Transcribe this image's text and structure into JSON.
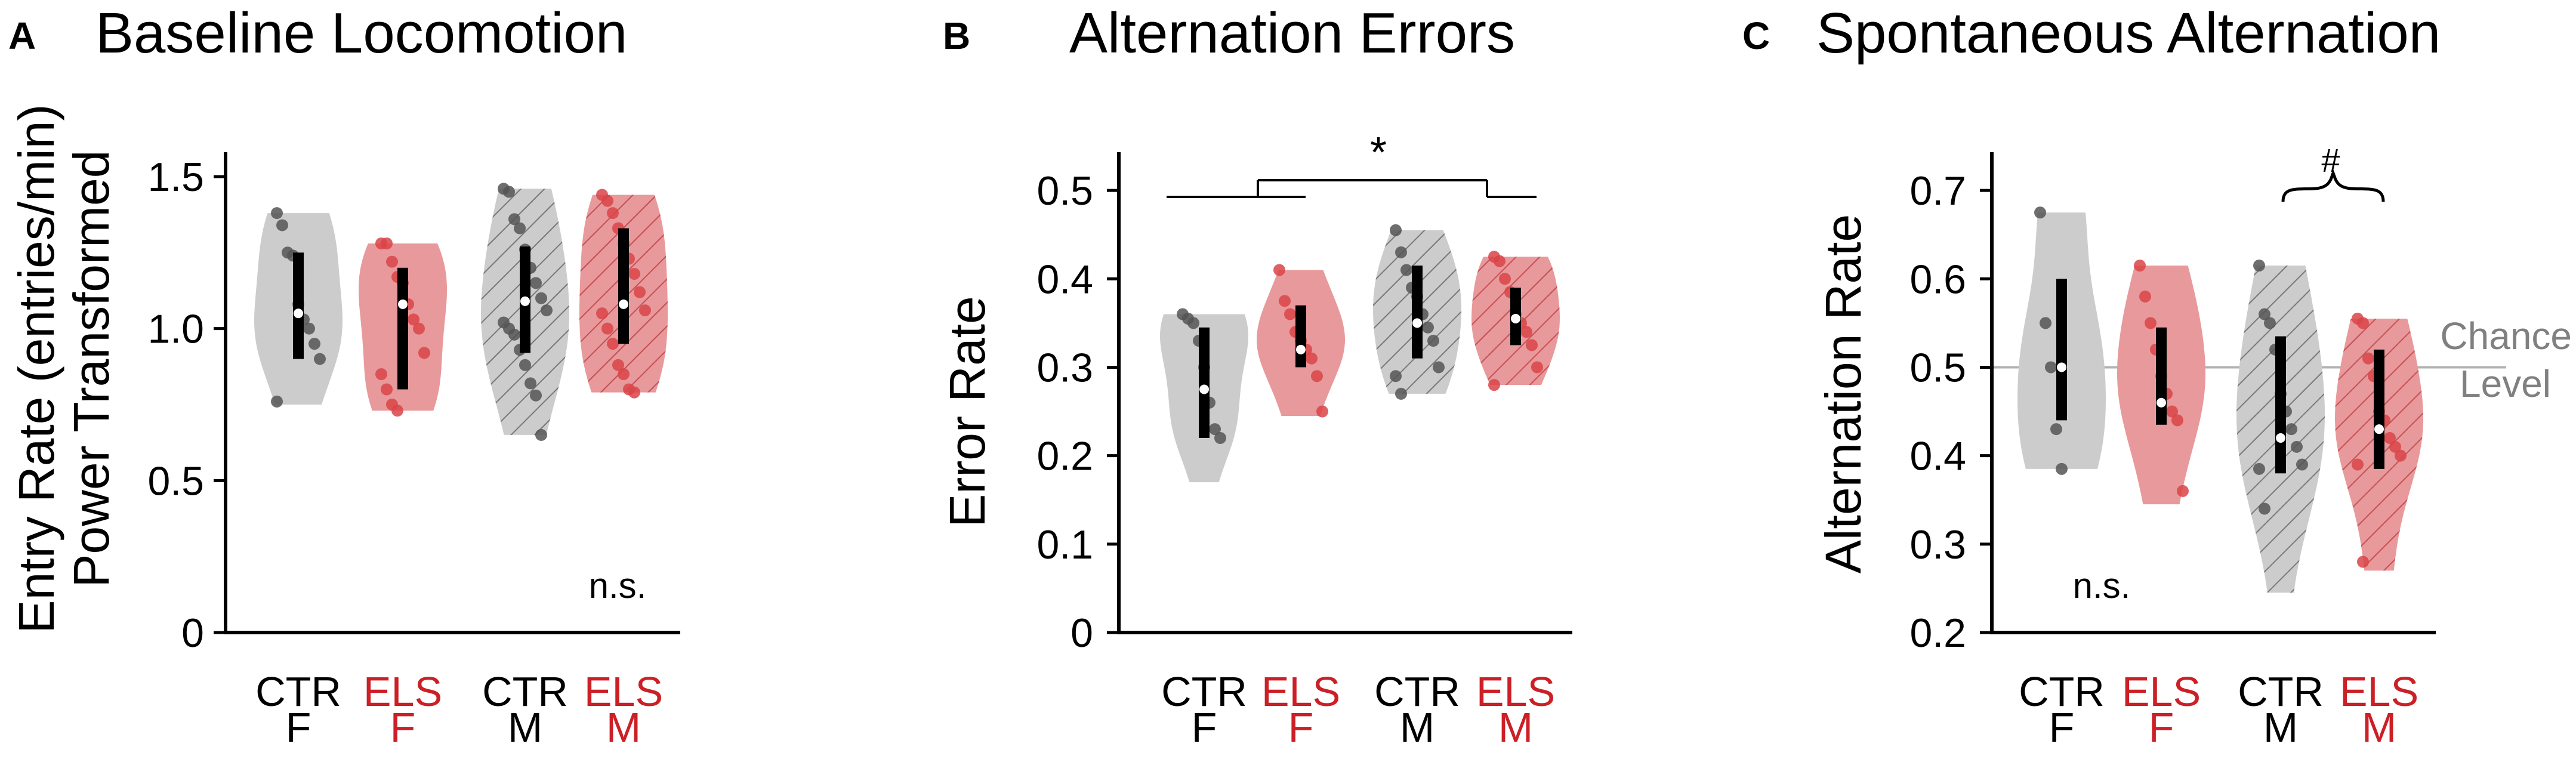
{
  "colors": {
    "ctr_fill": "#cccccc",
    "els_fill": "#e8999b",
    "ctr_point": "#555555",
    "els_point": "#d94448",
    "ctr_label": "#000000",
    "els_label": "#cc1f26",
    "chance_line": "#b3b3b3",
    "chance_text": "#808080"
  },
  "group_labels": [
    {
      "top": "CTR",
      "bottom": "F",
      "kind": "ctr"
    },
    {
      "top": "ELS",
      "bottom": "F",
      "kind": "els"
    },
    {
      "top": "CTR",
      "bottom": "M",
      "kind": "ctr"
    },
    {
      "top": "ELS",
      "bottom": "M",
      "kind": "els"
    }
  ],
  "chart_data": [
    {
      "panel": "A",
      "type": "violin",
      "title": "Baseline Locomotion",
      "ylabel": [
        "Entry Rate (entries/min)",
        "Power Transformed"
      ],
      "ylim": [
        0,
        1.6
      ],
      "yticks": [
        0,
        0.5,
        1.0,
        1.5
      ],
      "ytick_labels": [
        "0",
        "0.5",
        "1.0",
        "1.5"
      ],
      "annotation": "n.s.",
      "series": [
        {
          "group": "CTR F",
          "median": 1.05,
          "q1": 0.9,
          "q3": 1.25,
          "min": 0.75,
          "max": 1.38,
          "hatched": false,
          "points": [
            1.38,
            1.34,
            1.25,
            1.24,
            1.08,
            1.03,
            1.0,
            0.95,
            0.9,
            0.76
          ]
        },
        {
          "group": "ELS F",
          "median": 1.08,
          "q1": 0.8,
          "q3": 1.2,
          "min": 0.73,
          "max": 1.28,
          "hatched": false,
          "points": [
            1.28,
            1.28,
            1.22,
            1.17,
            1.15,
            1.08,
            1.03,
            1.0,
            0.92,
            0.85,
            0.8,
            0.75,
            0.73
          ]
        },
        {
          "group": "CTR M",
          "median": 1.09,
          "q1": 0.92,
          "q3": 1.27,
          "min": 0.65,
          "max": 1.46,
          "hatched": true,
          "points": [
            1.46,
            1.45,
            1.36,
            1.33,
            1.26,
            1.2,
            1.15,
            1.1,
            1.06,
            1.02,
            1.0,
            0.98,
            0.93,
            0.88,
            0.82,
            0.78,
            0.65
          ]
        },
        {
          "group": "ELS M",
          "median": 1.08,
          "q1": 0.95,
          "q3": 1.33,
          "min": 0.79,
          "max": 1.44,
          "hatched": true,
          "points": [
            1.44,
            1.42,
            1.38,
            1.33,
            1.28,
            1.23,
            1.18,
            1.12,
            1.06,
            1.05,
            1.0,
            0.95,
            0.88,
            0.85,
            0.8,
            0.79
          ]
        }
      ]
    },
    {
      "panel": "B",
      "type": "violin",
      "title": "Alternation Errors",
      "ylabel": [
        "Error Rate"
      ],
      "ylim": [
        0,
        0.55
      ],
      "yticks": [
        0,
        0.1,
        0.2,
        0.3,
        0.4,
        0.5
      ],
      "ytick_labels": [
        "0",
        "0.1",
        "0.2",
        "0.3",
        "0.4",
        "0.5"
      ],
      "significance": "*",
      "series": [
        {
          "group": "CTR F",
          "median": 0.275,
          "q1": 0.22,
          "q3": 0.345,
          "min": 0.17,
          "max": 0.36,
          "hatched": false,
          "points": [
            0.36,
            0.355,
            0.35,
            0.33,
            0.3,
            0.26,
            0.23,
            0.22
          ]
        },
        {
          "group": "ELS F",
          "median": 0.32,
          "q1": 0.3,
          "q3": 0.37,
          "min": 0.245,
          "max": 0.41,
          "hatched": false,
          "points": [
            0.41,
            0.375,
            0.36,
            0.34,
            0.33,
            0.32,
            0.31,
            0.29,
            0.25
          ]
        },
        {
          "group": "CTR M",
          "median": 0.35,
          "q1": 0.31,
          "q3": 0.415,
          "min": 0.27,
          "max": 0.455,
          "hatched": true,
          "points": [
            0.455,
            0.43,
            0.41,
            0.39,
            0.38,
            0.36,
            0.345,
            0.33,
            0.3,
            0.29,
            0.27
          ]
        },
        {
          "group": "ELS M",
          "median": 0.355,
          "q1": 0.325,
          "q3": 0.39,
          "min": 0.28,
          "max": 0.425,
          "hatched": true,
          "points": [
            0.425,
            0.42,
            0.4,
            0.385,
            0.36,
            0.35,
            0.34,
            0.325,
            0.3,
            0.28
          ]
        }
      ]
    },
    {
      "panel": "C",
      "type": "violin",
      "title": "Spontaneous Alternation",
      "ylabel": [
        "Alternation Rate"
      ],
      "ylim": [
        0.2,
        0.75
      ],
      "yticks": [
        0.2,
        0.3,
        0.4,
        0.5,
        0.6,
        0.7
      ],
      "ytick_labels": [
        "0.2",
        "0.3",
        "0.4",
        "0.5",
        "0.6",
        "0.7"
      ],
      "reference_line": {
        "value": 0.5,
        "label": [
          "Chance",
          "Level"
        ]
      },
      "annotation": "n.s.",
      "significance": "#",
      "series": [
        {
          "group": "CTR F",
          "median": 0.5,
          "q1": 0.44,
          "q3": 0.6,
          "min": 0.385,
          "max": 0.675,
          "hatched": false,
          "points": [
            0.675,
            0.55,
            0.5,
            0.43,
            0.385
          ]
        },
        {
          "group": "ELS F",
          "median": 0.46,
          "q1": 0.435,
          "q3": 0.545,
          "min": 0.345,
          "max": 0.615,
          "hatched": false,
          "points": [
            0.615,
            0.58,
            0.55,
            0.52,
            0.49,
            0.47,
            0.45,
            0.44,
            0.36
          ]
        },
        {
          "group": "CTR M",
          "median": 0.42,
          "q1": 0.38,
          "q3": 0.535,
          "min": 0.245,
          "max": 0.615,
          "hatched": true,
          "points": [
            0.615,
            0.56,
            0.55,
            0.52,
            0.47,
            0.45,
            0.43,
            0.41,
            0.39,
            0.385,
            0.34
          ]
        },
        {
          "group": "ELS M",
          "median": 0.43,
          "q1": 0.385,
          "q3": 0.52,
          "min": 0.27,
          "max": 0.555,
          "hatched": true,
          "points": [
            0.555,
            0.55,
            0.51,
            0.49,
            0.45,
            0.44,
            0.42,
            0.41,
            0.4,
            0.39,
            0.28
          ]
        }
      ]
    }
  ],
  "panel_letters": [
    "A",
    "B",
    "C"
  ]
}
